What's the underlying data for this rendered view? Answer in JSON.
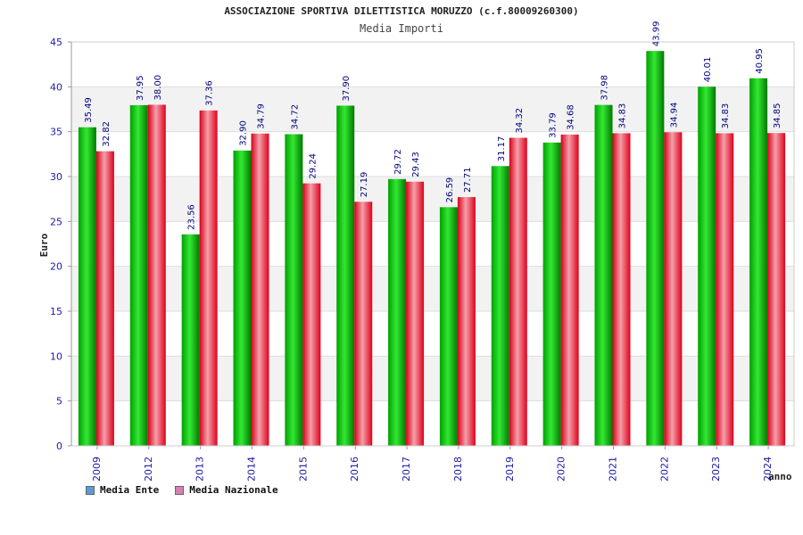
{
  "chart_data": {
    "type": "bar",
    "title": "ASSOCIAZIONE SPORTIVA DILETTISTICA MORUZZO (c.f.80009260300)",
    "subtitle": "Media Importi",
    "xlabel": "anno",
    "ylabel": "Euro",
    "ylim": [
      0,
      45
    ],
    "yticks": [
      "0",
      "5",
      "10",
      "15",
      "20",
      "25",
      "30",
      "35",
      "40",
      "45"
    ],
    "categories": [
      "2009",
      "2012",
      "2013",
      "2014",
      "2015",
      "2016",
      "2017",
      "2018",
      "2019",
      "2020",
      "2021",
      "2022",
      "2023",
      "2024"
    ],
    "series": [
      {
        "name": "Media Ente",
        "values": [
          35.49,
          37.95,
          23.56,
          32.9,
          34.72,
          37.9,
          29.72,
          26.59,
          31.17,
          33.79,
          37.98,
          43.99,
          40.01,
          40.95
        ],
        "labels": [
          "35.49",
          "37.95",
          "23.56",
          "32.90",
          "34.72",
          "37.90",
          "29.72",
          "26.59",
          "31.17",
          "33.79",
          "37.98",
          "43.99",
          "40.01",
          "40.95"
        ],
        "color": "#00b000",
        "legend_color": "#5b9bd5"
      },
      {
        "name": "Media Nazionale",
        "values": [
          32.82,
          38.0,
          37.36,
          34.79,
          29.24,
          27.19,
          29.43,
          27.71,
          34.32,
          34.68,
          34.83,
          34.94,
          34.83,
          34.85
        ],
        "labels": [
          "32.82",
          "38.00",
          "37.36",
          "34.79",
          "29.24",
          "27.19",
          "29.43",
          "27.71",
          "34.32",
          "34.68",
          "34.83",
          "34.94",
          "34.83",
          "34.85"
        ],
        "color": "#e8001c",
        "legend_color": "#d97fb0"
      }
    ],
    "grid": true,
    "legend_position": "bottom-left"
  }
}
